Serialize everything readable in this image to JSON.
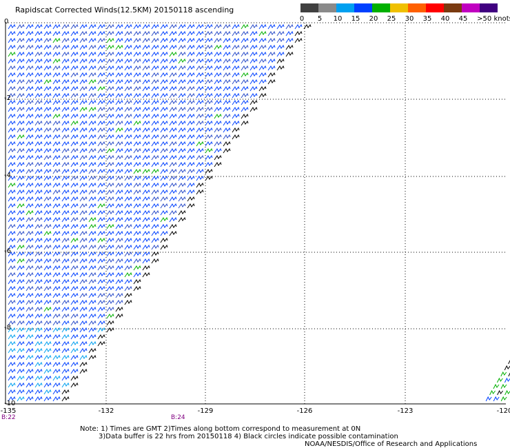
{
  "header": {
    "title": "Rapidscat Corrected Winds(12.5KM) 20150118 ascending"
  },
  "legend": {
    "colors": [
      "#404040",
      "#8a8a8a",
      "#00a0f0",
      "#0040ff",
      "#00b000",
      "#f0c000",
      "#ff6000",
      "#ff0000",
      "#7a3a10",
      "#c000c0",
      "#400080"
    ],
    "labels": [
      "0",
      "5",
      "10",
      "15",
      "20",
      "25",
      "30",
      "35",
      "40",
      "45",
      ">50 knots"
    ]
  },
  "axes": {
    "lat_labels": [
      "0",
      "-2",
      "-4",
      "-6",
      "-8",
      "-10"
    ],
    "lon_labels": [
      "-135",
      "-132",
      "-129",
      "-126",
      "-123",
      "-120"
    ]
  },
  "time_marks": [
    "B:22",
    "B:24"
  ],
  "notes": {
    "line1": "Note: 1) Times are GMT 2)Times along bottom correspond to measurement at 0N",
    "line2": "3)Data buffer is 22 hrs from 20150118 4) Black circles indicate possible contamination",
    "line3": "NOAA/NESDIS/Office of Research and Applications"
  }
}
